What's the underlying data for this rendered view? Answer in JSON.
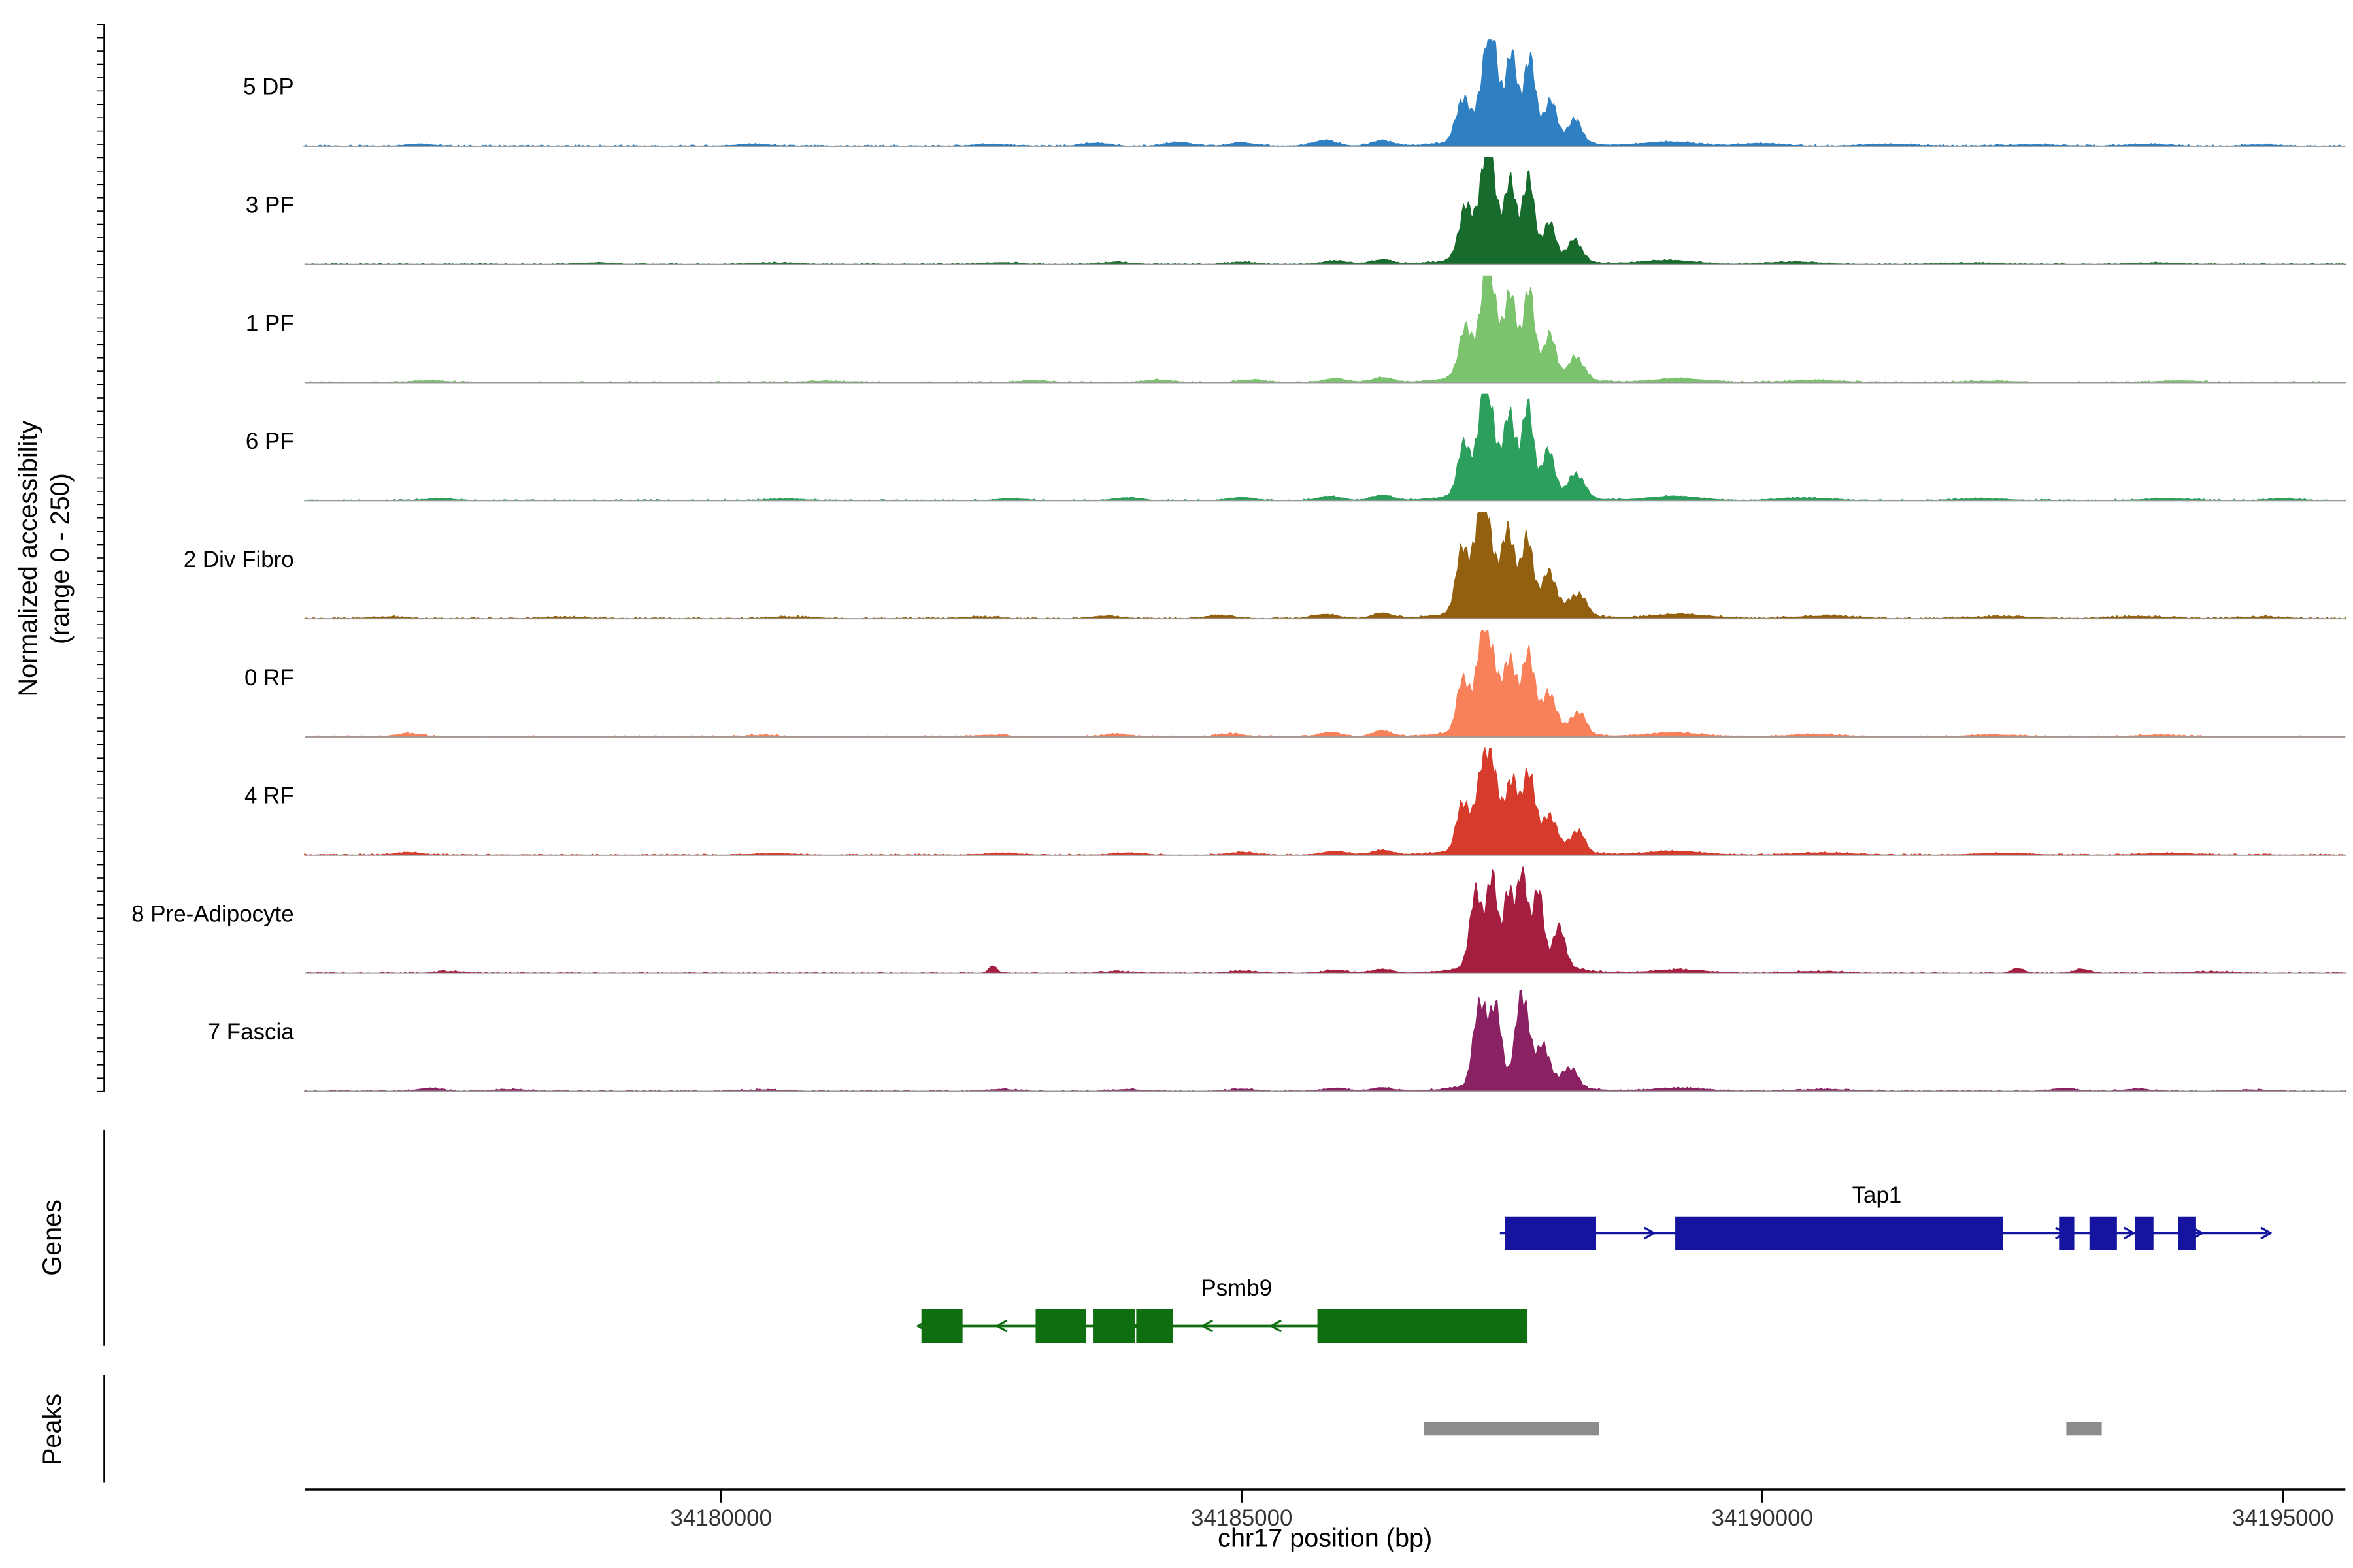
{
  "sections": {
    "genes_label": "Genes",
    "peaks_label": "Peaks"
  },
  "chart_data": {
    "type": "area",
    "title": "",
    "xlabel": "chr17 position (bp)",
    "ylabel": "Normalized accessibility (range 0 - 250)",
    "ylabel_line1": "Normalized accessibility",
    "ylabel_line2": "(range 0 - 250)",
    "xlim": [
      34176000,
      34195600
    ],
    "ylim": [
      0,
      250
    ],
    "x_ticks": [
      34180000,
      34185000,
      34190000,
      34195000
    ],
    "tracks": [
      {
        "name": "5 DP",
        "color": "#2f80c3",
        "noise": 1.5,
        "summits": [
          [
            34187380,
            80,
            240
          ],
          [
            34187120,
            60,
            100
          ],
          [
            34187590,
            55,
            165
          ],
          [
            34187760,
            55,
            175
          ],
          [
            34187960,
            60,
            85
          ],
          [
            34188200,
            70,
            50
          ],
          [
            34187600,
            400,
            30
          ]
        ],
        "minor": [
          [
            34177100,
            120,
            5
          ],
          [
            34180300,
            160,
            4
          ],
          [
            34182600,
            150,
            4
          ],
          [
            34183600,
            120,
            7
          ],
          [
            34184400,
            120,
            9
          ],
          [
            34185000,
            110,
            8
          ],
          [
            34185800,
            110,
            13
          ],
          [
            34186350,
            100,
            12
          ],
          [
            34189100,
            250,
            10
          ],
          [
            34190000,
            200,
            6
          ],
          [
            34191200,
            250,
            4
          ],
          [
            34192600,
            250,
            3
          ],
          [
            34193700,
            200,
            4
          ],
          [
            34194800,
            150,
            3
          ]
        ]
      },
      {
        "name": "3 PF",
        "color": "#176b2c",
        "noise": 1.3,
        "summits": [
          [
            34187360,
            80,
            250
          ],
          [
            34187140,
            60,
            110
          ],
          [
            34187580,
            55,
            150
          ],
          [
            34187750,
            55,
            170
          ],
          [
            34187950,
            60,
            75
          ],
          [
            34188200,
            70,
            45
          ],
          [
            34187600,
            400,
            28
          ]
        ],
        "minor": [
          [
            34178800,
            150,
            3
          ],
          [
            34180500,
            200,
            3
          ],
          [
            34182700,
            150,
            4
          ],
          [
            34183800,
            120,
            5
          ],
          [
            34185000,
            120,
            5
          ],
          [
            34185900,
            110,
            8
          ],
          [
            34186350,
            100,
            10
          ],
          [
            34189100,
            250,
            9
          ],
          [
            34190300,
            250,
            5
          ],
          [
            34192000,
            250,
            3
          ],
          [
            34193800,
            200,
            3
          ]
        ]
      },
      {
        "name": "1 PF",
        "color": "#7cc36d",
        "noise": 1.4,
        "summits": [
          [
            34187370,
            85,
            235
          ],
          [
            34187140,
            60,
            100
          ],
          [
            34187590,
            55,
            160
          ],
          [
            34187760,
            55,
            175
          ],
          [
            34187960,
            60,
            85
          ],
          [
            34188220,
            70,
            50
          ],
          [
            34187600,
            400,
            30
          ]
        ],
        "minor": [
          [
            34177200,
            150,
            4
          ],
          [
            34181000,
            200,
            3
          ],
          [
            34183000,
            150,
            4
          ],
          [
            34184200,
            130,
            6
          ],
          [
            34185100,
            120,
            6
          ],
          [
            34185900,
            110,
            9
          ],
          [
            34186350,
            100,
            11
          ],
          [
            34189200,
            250,
            9
          ],
          [
            34190500,
            250,
            5
          ],
          [
            34192200,
            250,
            3
          ],
          [
            34194000,
            200,
            4
          ]
        ]
      },
      {
        "name": "6 PF",
        "color": "#2d9f5c",
        "noise": 1.4,
        "summits": [
          [
            34187350,
            80,
            240
          ],
          [
            34187130,
            60,
            105
          ],
          [
            34187580,
            55,
            165
          ],
          [
            34187750,
            55,
            180
          ],
          [
            34187950,
            60,
            90
          ],
          [
            34188220,
            70,
            55
          ],
          [
            34187600,
            400,
            30
          ]
        ],
        "minor": [
          [
            34177300,
            150,
            4
          ],
          [
            34180600,
            200,
            3
          ],
          [
            34182800,
            150,
            4
          ],
          [
            34183900,
            130,
            6
          ],
          [
            34185000,
            120,
            7
          ],
          [
            34185850,
            110,
            10
          ],
          [
            34186350,
            100,
            12
          ],
          [
            34189150,
            250,
            10
          ],
          [
            34190400,
            250,
            6
          ],
          [
            34192100,
            250,
            4
          ],
          [
            34193900,
            250,
            4
          ],
          [
            34195000,
            150,
            4
          ]
        ]
      },
      {
        "name": "2 Div Fibro",
        "color": "#92600e",
        "noise": 1.8,
        "summits": [
          [
            34187320,
            90,
            250
          ],
          [
            34187110,
            60,
            120
          ],
          [
            34187570,
            60,
            170
          ],
          [
            34187750,
            55,
            150
          ],
          [
            34187960,
            65,
            85
          ],
          [
            34188230,
            75,
            50
          ],
          [
            34187600,
            420,
            32
          ]
        ],
        "minor": [
          [
            34176800,
            150,
            4
          ],
          [
            34178500,
            200,
            3
          ],
          [
            34180700,
            200,
            4
          ],
          [
            34182500,
            160,
            4
          ],
          [
            34183700,
            130,
            6
          ],
          [
            34184800,
            130,
            7
          ],
          [
            34185800,
            120,
            10
          ],
          [
            34186350,
            100,
            12
          ],
          [
            34189200,
            280,
            10
          ],
          [
            34190600,
            280,
            6
          ],
          [
            34192300,
            280,
            5
          ],
          [
            34193600,
            250,
            5
          ],
          [
            34194800,
            200,
            4
          ]
        ]
      },
      {
        "name": "0 RF",
        "color": "#f9815a",
        "noise": 1.5,
        "summits": [
          [
            34187350,
            80,
            245
          ],
          [
            34187130,
            60,
            115
          ],
          [
            34187580,
            55,
            160
          ],
          [
            34187760,
            55,
            175
          ],
          [
            34187960,
            60,
            85
          ],
          [
            34188230,
            70,
            50
          ],
          [
            34187600,
            400,
            30
          ]
        ],
        "minor": [
          [
            34177000,
            130,
            7
          ],
          [
            34180400,
            200,
            3
          ],
          [
            34182600,
            160,
            4
          ],
          [
            34183800,
            130,
            6
          ],
          [
            34184900,
            120,
            7
          ],
          [
            34185850,
            110,
            10
          ],
          [
            34186350,
            100,
            12
          ],
          [
            34189150,
            260,
            9
          ],
          [
            34190500,
            260,
            5
          ],
          [
            34192200,
            260,
            4
          ],
          [
            34193800,
            220,
            4
          ]
        ]
      },
      {
        "name": "4 RF",
        "color": "#d63b2b",
        "noise": 1.4,
        "summits": [
          [
            34187360,
            80,
            240
          ],
          [
            34187130,
            60,
            110
          ],
          [
            34187590,
            55,
            155
          ],
          [
            34187760,
            55,
            180
          ],
          [
            34187960,
            60,
            80
          ],
          [
            34188220,
            70,
            48
          ],
          [
            34187600,
            400,
            28
          ]
        ],
        "minor": [
          [
            34177000,
            120,
            6
          ],
          [
            34180500,
            200,
            3
          ],
          [
            34182700,
            160,
            4
          ],
          [
            34183900,
            130,
            5
          ],
          [
            34185000,
            120,
            6
          ],
          [
            34185900,
            110,
            9
          ],
          [
            34186350,
            100,
            11
          ],
          [
            34189150,
            260,
            9
          ],
          [
            34190600,
            260,
            5
          ],
          [
            34192300,
            260,
            4
          ],
          [
            34193900,
            220,
            4
          ]
        ]
      },
      {
        "name": "8 Pre-Adipocyte",
        "color": "#a51e40",
        "noise": 1.4,
        "summits": [
          [
            34187250,
            60,
            160
          ],
          [
            34187400,
            50,
            195
          ],
          [
            34187560,
            45,
            175
          ],
          [
            34187700,
            50,
            210
          ],
          [
            34187850,
            50,
            155
          ],
          [
            34188050,
            60,
            85
          ],
          [
            34187650,
            380,
            30
          ]
        ],
        "minor": [
          [
            34177400,
            130,
            4
          ],
          [
            34182610,
            40,
            16
          ],
          [
            34183800,
            130,
            4
          ],
          [
            34185000,
            120,
            5
          ],
          [
            34185900,
            110,
            7
          ],
          [
            34186350,
            100,
            9
          ],
          [
            34189200,
            250,
            8
          ],
          [
            34190500,
            250,
            4
          ],
          [
            34192455,
            60,
            11
          ],
          [
            34193070,
            80,
            8
          ],
          [
            34194300,
            200,
            3
          ]
        ]
      },
      {
        "name": "7 Fascia",
        "color": "#8a2163",
        "noise": 1.4,
        "summits": [
          [
            34187300,
            65,
            200
          ],
          [
            34187450,
            50,
            150
          ],
          [
            34187700,
            60,
            210
          ],
          [
            34187900,
            55,
            90
          ],
          [
            34188150,
            70,
            45
          ],
          [
            34187650,
            380,
            28
          ]
        ],
        "minor": [
          [
            34177200,
            110,
            7
          ],
          [
            34178000,
            140,
            4
          ],
          [
            34180400,
            180,
            3
          ],
          [
            34182700,
            140,
            4
          ],
          [
            34183900,
            130,
            4
          ],
          [
            34185000,
            120,
            5
          ],
          [
            34185900,
            110,
            7
          ],
          [
            34186350,
            100,
            8
          ],
          [
            34189200,
            250,
            7
          ],
          [
            34190600,
            250,
            4
          ],
          [
            34192900,
            120,
            6
          ],
          [
            34193600,
            120,
            5
          ],
          [
            34194700,
            150,
            3
          ]
        ]
      }
    ],
    "genes": [
      {
        "name": "Tap1",
        "strand": "+",
        "color": "#1414a0",
        "start": 34187480,
        "end": 34194850,
        "label_bp": 34191100,
        "exons": [
          [
            34187526,
            34188404
          ],
          [
            34189164,
            34192309
          ],
          [
            34192850,
            34192996
          ],
          [
            34193142,
            34193406
          ],
          [
            34193581,
            34193757
          ],
          [
            34193991,
            34194166
          ]
        ]
      },
      {
        "name": "Psmb9",
        "strand": "-",
        "color": "#0f6e0f",
        "start": 34181924,
        "end": 34187745,
        "label_bp": 34184950,
        "exons": [
          [
            34181924,
            34182319
          ],
          [
            34183021,
            34183504
          ],
          [
            34183577,
            34183972
          ],
          [
            34183987,
            34184337
          ],
          [
            34185727,
            34187745
          ]
        ]
      }
    ],
    "peak_regions": [
      [
        34186750,
        34188430
      ],
      [
        34192920,
        34193260
      ]
    ],
    "peak_color": "#8c8c8c"
  }
}
